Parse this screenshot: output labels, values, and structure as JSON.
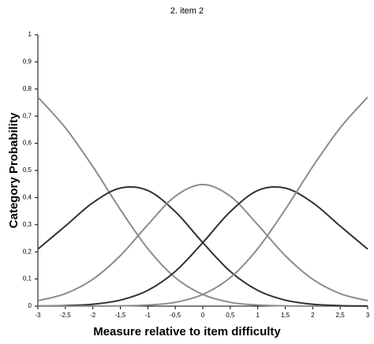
{
  "chart_data": {
    "type": "line",
    "title": "2. item 2",
    "xlabel": "Measure relative to item difficulty",
    "ylabel": "Category Probability",
    "x": [
      -3,
      -2.5,
      -2,
      -1.5,
      -1,
      -0.5,
      0,
      0.5,
      1,
      1.5,
      2,
      2.5,
      3
    ],
    "series": [
      {
        "color": "#8c8c8c",
        "values": [
          0.77,
          0.657,
          0.514,
          0.356,
          0.212,
          0.105,
          0.043,
          0.014,
          0.004,
          0.001,
          0.0002,
          0,
          0
        ]
      },
      {
        "color": "#333333",
        "values": [
          0.21,
          0.295,
          0.381,
          0.435,
          0.426,
          0.348,
          0.234,
          0.128,
          0.058,
          0.022,
          0.007,
          0.002,
          0.0005
        ]
      },
      {
        "color": "#8c8c8c",
        "values": [
          0.02,
          0.046,
          0.099,
          0.186,
          0.3,
          0.405,
          0.448,
          0.405,
          0.3,
          0.186,
          0.099,
          0.046,
          0.02
        ]
      },
      {
        "color": "#333333",
        "values": [
          0.0005,
          0.002,
          0.007,
          0.022,
          0.058,
          0.128,
          0.234,
          0.348,
          0.426,
          0.435,
          0.381,
          0.295,
          0.21
        ]
      },
      {
        "color": "#8c8c8c",
        "values": [
          0,
          0,
          0.0002,
          0.001,
          0.004,
          0.014,
          0.043,
          0.105,
          0.212,
          0.356,
          0.514,
          0.657,
          0.77
        ]
      }
    ],
    "xlim": [
      -3,
      3
    ],
    "xticks": [
      -3,
      {
        "value": -2.5,
        "label": "-2,5"
      },
      -2,
      {
        "value": -1.5,
        "label": "-1,5"
      },
      -1,
      {
        "value": -0.5,
        "label": "-0,5"
      },
      0,
      {
        "value": 0.5,
        "label": "0,5"
      },
      1,
      {
        "value": 1.5,
        "label": "1,5"
      },
      2,
      {
        "value": 2.5,
        "label": "2,5"
      },
      3
    ],
    "ylim": [
      0,
      1
    ],
    "yticks": [
      0,
      {
        "value": 0.1,
        "label": "0,1"
      },
      {
        "value": 0.2,
        "label": "0,2"
      },
      {
        "value": 0.3,
        "label": "0,3"
      },
      {
        "value": 0.4,
        "label": "0,4"
      },
      {
        "value": 0.5,
        "label": "0,5"
      },
      {
        "value": 0.6,
        "label": "0,6"
      },
      {
        "value": 0.7,
        "label": "0,7"
      },
      {
        "value": 0.8,
        "label": "0,8"
      },
      {
        "value": 0.9,
        "label": "0,9"
      },
      1
    ],
    "grid": false
  }
}
